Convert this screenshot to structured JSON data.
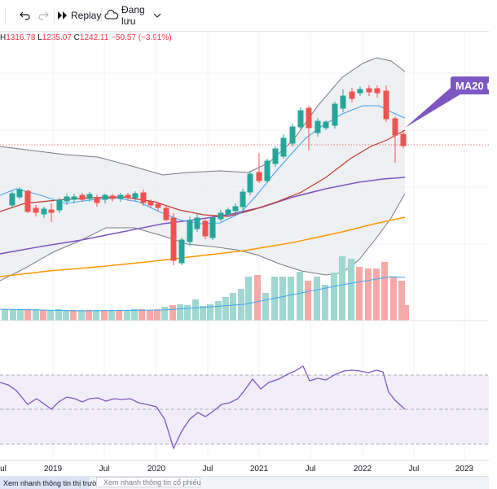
{
  "toolbar": {
    "undo_icon": "undo-icon",
    "redo_icon": "redo-icon",
    "replay_label": "Replay",
    "save_label": "Đang lưu"
  },
  "ohlc": {
    "h_key": "H",
    "h_val": "1316.78",
    "l_key": "L",
    "l_val": "1235.07",
    "c_key": "C",
    "c_val": "1242.11",
    "change": "−50.57 (−3.91%)"
  },
  "ma_label": "MA20 th",
  "colors": {
    "up": "#26a69a",
    "down": "#ef5350",
    "ma_purple": "#7e57c2",
    "ma_orange": "#ff9800",
    "ma_blue": "#42a5f5",
    "ma_red": "#c0392b",
    "band": "#787b86"
  },
  "xaxis": {
    "labels": [
      "ul",
      "2019",
      "Jul",
      "2020",
      "Jul",
      "2021",
      "Jul",
      "2022",
      "Jul",
      "2023"
    ]
  },
  "bottom": {
    "tab1": "Xem nhanh thông tin thị trường",
    "tab2": "Xem nhanh thông tin cổ phiếu"
  }
}
